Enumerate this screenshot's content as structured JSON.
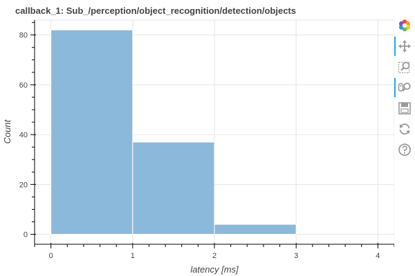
{
  "chart_data": {
    "type": "bar",
    "title": "callback_1: Sub_/perception/object_recognition/detection/objects",
    "xlabel": "latency [ms]",
    "ylabel": "Count",
    "bins": [
      {
        "x0": 0,
        "x1": 1,
        "count": 82
      },
      {
        "x0": 1,
        "x1": 2,
        "count": 37
      },
      {
        "x0": 2,
        "x1": 3,
        "count": 4
      }
    ],
    "xlim": [
      -0.2,
      4.2
    ],
    "ylim": [
      -4,
      86
    ],
    "x_ticks": [
      0,
      1,
      2,
      3,
      4
    ],
    "y_ticks": [
      0,
      20,
      40,
      60,
      80
    ],
    "grid": true,
    "bar_color": "#8bb9dc"
  },
  "toolbar": {
    "tools": [
      {
        "name": "bokeh-logo-icon",
        "active": false
      },
      {
        "name": "pan-icon",
        "active": true
      },
      {
        "name": "box-zoom-icon",
        "active": false
      },
      {
        "name": "wheel-zoom-icon",
        "active": true
      },
      {
        "name": "save-icon",
        "active": false
      },
      {
        "name": "reset-icon",
        "active": false
      },
      {
        "name": "help-icon",
        "active": false
      }
    ]
  }
}
